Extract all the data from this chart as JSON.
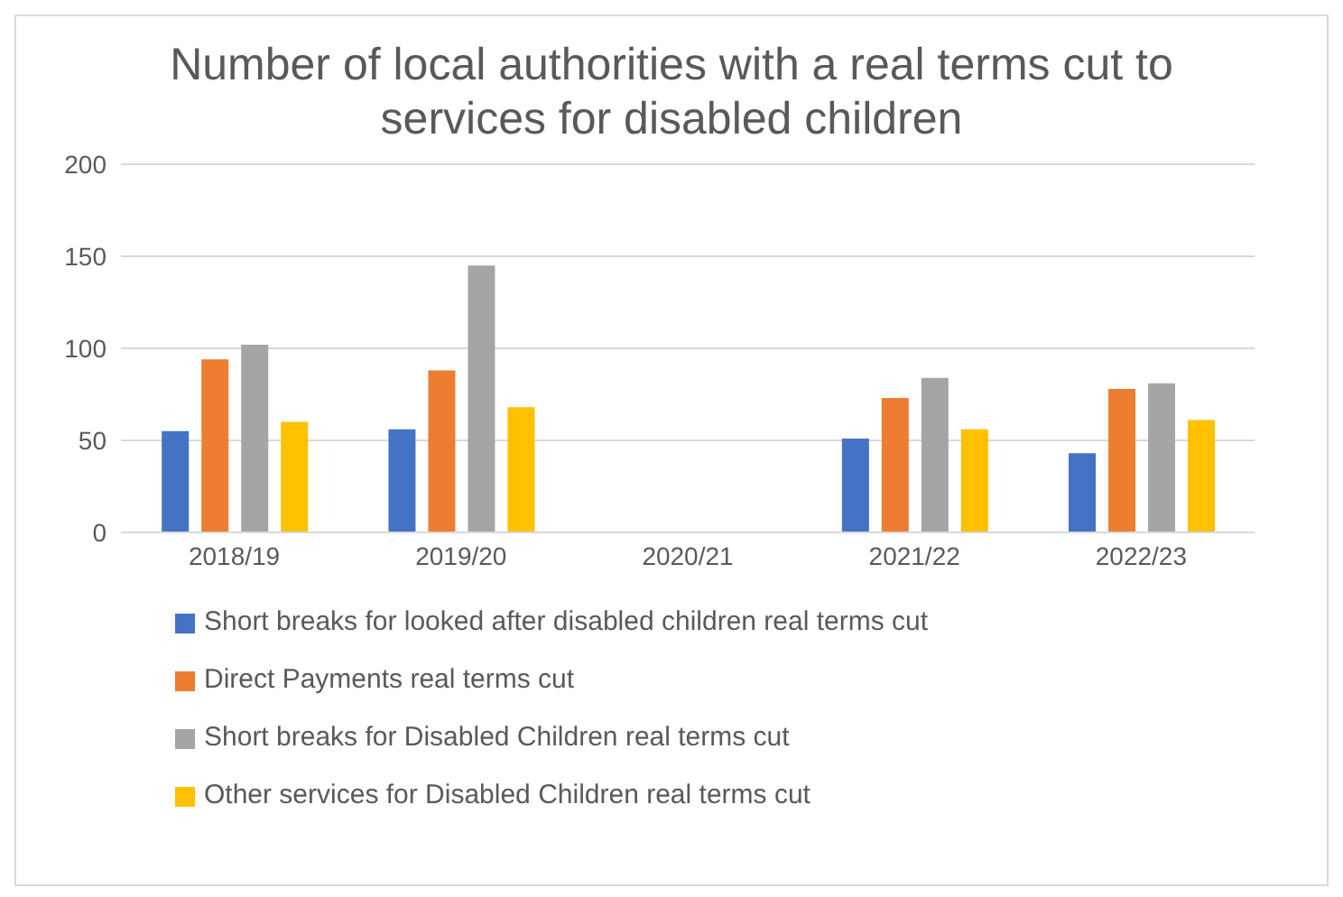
{
  "chart_data": {
    "type": "bar",
    "title": "Number of local authorities with a real terms cut to services for disabled children",
    "categories": [
      "2018/19",
      "2019/20",
      "2020/21",
      "2021/22",
      "2022/23"
    ],
    "series": [
      {
        "name": "Short breaks for looked after disabled children real terms cut",
        "color": "#4472c4",
        "values": [
          55,
          56,
          null,
          51,
          43
        ]
      },
      {
        "name": "Direct Payments real terms cut",
        "color": "#ed7d31",
        "values": [
          94,
          88,
          null,
          73,
          78
        ]
      },
      {
        "name": "Short breaks for Disabled Children real terms cut",
        "color": "#a5a5a5",
        "values": [
          102,
          145,
          null,
          84,
          81
        ]
      },
      {
        "name": "Other services for Disabled Children real terms cut",
        "color": "#ffc000",
        "values": [
          60,
          68,
          null,
          56,
          61
        ]
      }
    ],
    "ylim": [
      0,
      200
    ],
    "yticks": [
      0,
      50,
      100,
      150,
      200
    ],
    "grid": "y",
    "legend": "bottom"
  }
}
